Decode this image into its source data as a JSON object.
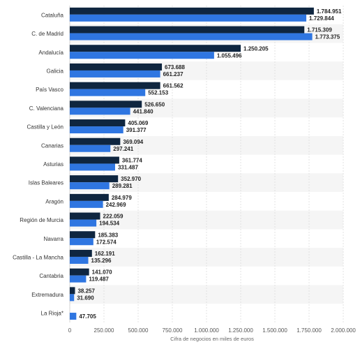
{
  "chart_data": {
    "type": "bar",
    "orientation": "horizontal",
    "categories": [
      "Cataluña",
      "C. de Madrid",
      "Andalucía",
      "Galicia",
      "País Vasco",
      "C. Valenciana",
      "Castilla y León",
      "Canarias",
      "Asturias",
      "Islas Baleares",
      "Aragón",
      "Región de Murcia",
      "Navarra",
      "Castilla - La Mancha",
      "Cantabria",
      "Extremadura",
      "La Rioja*"
    ],
    "series": [
      {
        "color": "#0f2640",
        "values": [
          1784951,
          1715309,
          1250205,
          673688,
          661562,
          526650,
          405069,
          369094,
          361774,
          352970,
          284979,
          222059,
          185383,
          162191,
          141070,
          38257,
          null
        ],
        "labels": [
          "1.784.951",
          "1.715.309",
          "1.250.205",
          "673.688",
          "661.562",
          "526.650",
          "405.069",
          "369.094",
          "361.774",
          "352.970",
          "284.979",
          "222.059",
          "185.383",
          "162.191",
          "141.070",
          "38.257",
          ""
        ]
      },
      {
        "color": "#2f76e1",
        "values": [
          1729844,
          1773375,
          1055496,
          661237,
          552153,
          441840,
          391377,
          297241,
          331487,
          289281,
          242969,
          194534,
          172574,
          135296,
          119487,
          31690,
          47705
        ],
        "labels": [
          "1.729.844",
          "1.773.375",
          "1.055.496",
          "661.237",
          "552.153",
          "441.840",
          "391.377",
          "297.241",
          "331.487",
          "289.281",
          "242.969",
          "194.534",
          "172.574",
          "135.296",
          "119.487",
          "31.690",
          "47.705"
        ]
      }
    ],
    "xlim": [
      0,
      2000000
    ],
    "xticks": [
      0,
      250000,
      500000,
      750000,
      1000000,
      1250000,
      1500000,
      1750000,
      2000000
    ],
    "xtick_labels": [
      "0",
      "250.000",
      "500.000",
      "750.000",
      "1.000.000",
      "1.250.000",
      "1.500.000",
      "1.750.000",
      "2.000.000"
    ],
    "xlabel": "Cifra de negocios en miles de euros",
    "grid": true,
    "band_color": "#f5f5f5"
  }
}
